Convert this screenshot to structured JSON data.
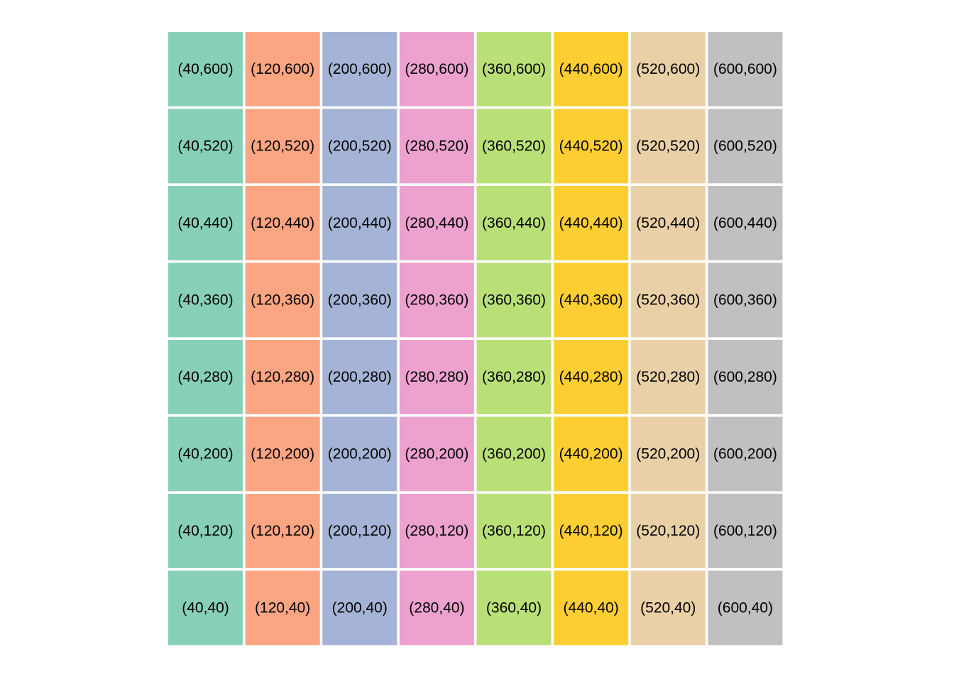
{
  "grid": {
    "colors": [
      "#87d0b7",
      "#fca582",
      "#a4b3d6",
      "#eca1cf",
      "#b9e077",
      "#ffce33",
      "#e9d0a7",
      "#c0c0c0"
    ],
    "rows": [
      [
        "(40,600)",
        "(120,600)",
        "(200,600)",
        "(280,600)",
        "(360,600)",
        "(440,600)",
        "(520,600)",
        "(600,600)"
      ],
      [
        "(40,520)",
        "(120,520)",
        "(200,520)",
        "(280,520)",
        "(360,520)",
        "(440,520)",
        "(520,520)",
        "(600,520)"
      ],
      [
        "(40,440)",
        "(120,440)",
        "(200,440)",
        "(280,440)",
        "(360,440)",
        "(440,440)",
        "(520,440)",
        "(600,440)"
      ],
      [
        "(40,360)",
        "(120,360)",
        "(200,360)",
        "(280,360)",
        "(360,360)",
        "(440,360)",
        "(520,360)",
        "(600,360)"
      ],
      [
        "(40,280)",
        "(120,280)",
        "(200,280)",
        "(280,280)",
        "(360,280)",
        "(440,280)",
        "(520,280)",
        "(600,280)"
      ],
      [
        "(40,200)",
        "(120,200)",
        "(200,200)",
        "(280,200)",
        "(360,200)",
        "(440,200)",
        "(520,200)",
        "(600,200)"
      ],
      [
        "(40,120)",
        "(120,120)",
        "(200,120)",
        "(280,120)",
        "(360,120)",
        "(440,120)",
        "(520,120)",
        "(600,120)"
      ],
      [
        "(40,40)",
        "(120,40)",
        "(200,40)",
        "(280,40)",
        "(360,40)",
        "(440,40)",
        "(520,40)",
        "(600,40)"
      ]
    ]
  }
}
